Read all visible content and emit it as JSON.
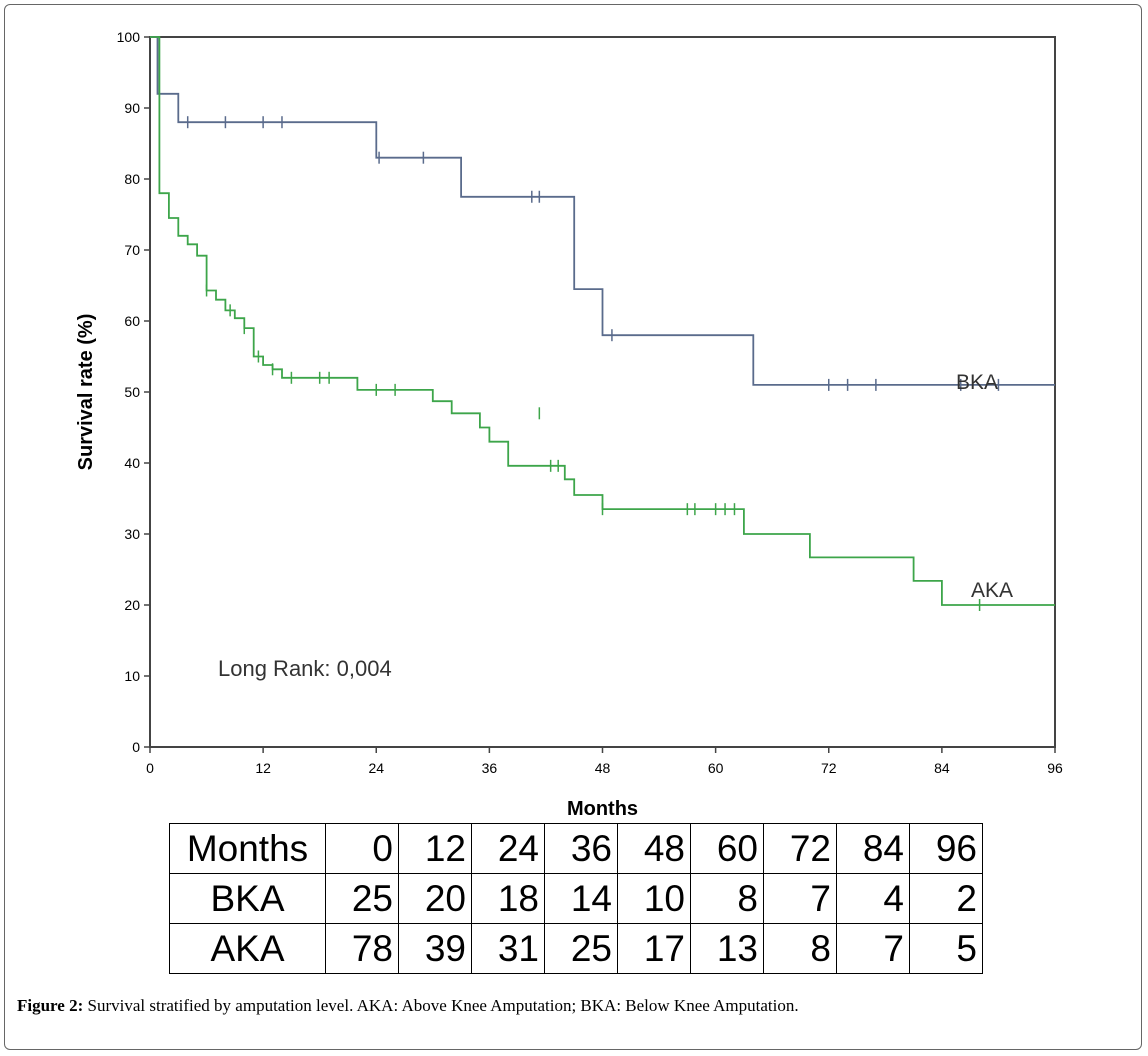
{
  "chart_data": {
    "type": "line",
    "subtype": "kaplan-meier step",
    "xlabel": "Months",
    "ylabel": "Survival rate (%)",
    "xlim": [
      0,
      96
    ],
    "ylim": [
      0,
      100
    ],
    "xticks": [
      0,
      12,
      24,
      36,
      48,
      60,
      72,
      84,
      96
    ],
    "yticks": [
      0,
      10,
      20,
      30,
      40,
      50,
      60,
      70,
      80,
      90,
      100
    ],
    "grid": false,
    "annotation": "Long Rank: 0,004",
    "series": [
      {
        "name": "BKA",
        "color": "#5a6b8c",
        "steps": [
          [
            0,
            100
          ],
          [
            0.8,
            100
          ],
          [
            0.8,
            92
          ],
          [
            3,
            92
          ],
          [
            3,
            88
          ],
          [
            24,
            88
          ],
          [
            24,
            83
          ],
          [
            33,
            83
          ],
          [
            33,
            77.5
          ],
          [
            45,
            77.5
          ],
          [
            45,
            64.5
          ],
          [
            48,
            64.5
          ],
          [
            48,
            58
          ],
          [
            64,
            58
          ],
          [
            64,
            51
          ],
          [
            96,
            51
          ]
        ],
        "censor_marks": [
          [
            4,
            88
          ],
          [
            8,
            88
          ],
          [
            12,
            88
          ],
          [
            14,
            88
          ],
          [
            24.3,
            83
          ],
          [
            29,
            83
          ],
          [
            40.5,
            77.5
          ],
          [
            41.3,
            77.5
          ],
          [
            49,
            58
          ],
          [
            72,
            51
          ],
          [
            74,
            51
          ],
          [
            77,
            51
          ],
          [
            86,
            51
          ],
          [
            90,
            51
          ]
        ]
      },
      {
        "name": "AKA",
        "color": "#3da54a",
        "steps": [
          [
            0,
            100
          ],
          [
            1,
            100
          ],
          [
            1,
            78
          ],
          [
            2,
            78
          ],
          [
            2,
            74.5
          ],
          [
            3,
            74.5
          ],
          [
            3,
            72
          ],
          [
            4,
            72
          ],
          [
            4,
            70.8
          ],
          [
            5,
            70.8
          ],
          [
            5,
            69.2
          ],
          [
            6,
            69.2
          ],
          [
            6,
            64.3
          ],
          [
            7,
            64.3
          ],
          [
            7,
            63
          ],
          [
            8,
            63
          ],
          [
            8,
            61.5
          ],
          [
            9,
            61.5
          ],
          [
            9,
            60.4
          ],
          [
            10,
            60.4
          ],
          [
            10,
            59
          ],
          [
            11,
            59
          ],
          [
            11,
            55
          ],
          [
            12,
            55
          ],
          [
            12,
            53.8
          ],
          [
            13,
            53.8
          ],
          [
            13,
            53.2
          ],
          [
            14,
            53.2
          ],
          [
            14,
            52
          ],
          [
            22,
            52
          ],
          [
            22,
            50.3
          ],
          [
            30,
            50.3
          ],
          [
            30,
            48.7
          ],
          [
            32,
            48.7
          ],
          [
            32,
            47
          ],
          [
            35,
            47
          ],
          [
            35,
            45
          ],
          [
            36,
            45
          ],
          [
            36,
            43
          ],
          [
            38,
            43
          ],
          [
            38,
            39.6
          ],
          [
            44,
            39.6
          ],
          [
            44,
            37.7
          ],
          [
            45,
            37.7
          ],
          [
            45,
            35.5
          ],
          [
            48,
            35.5
          ],
          [
            48,
            33.5
          ],
          [
            63,
            33.5
          ],
          [
            63,
            30
          ],
          [
            70,
            30
          ],
          [
            70,
            26.7
          ],
          [
            81,
            26.7
          ],
          [
            81,
            23.4
          ],
          [
            84,
            23.4
          ],
          [
            84,
            20
          ],
          [
            96,
            20
          ]
        ],
        "censor_marks": [
          [
            6,
            64.3
          ],
          [
            8.5,
            61.5
          ],
          [
            10,
            59
          ],
          [
            11.5,
            55
          ],
          [
            13,
            53.2
          ],
          [
            15,
            52
          ],
          [
            18,
            52
          ],
          [
            19,
            52
          ],
          [
            24,
            50.3
          ],
          [
            26,
            50.3
          ],
          [
            41.3,
            47
          ],
          [
            42.5,
            39.6
          ],
          [
            43.3,
            39.6
          ],
          [
            48,
            33.5
          ],
          [
            57,
            33.5
          ],
          [
            57.8,
            33.5
          ],
          [
            60,
            33.5
          ],
          [
            61,
            33.5
          ],
          [
            62,
            33.5
          ],
          [
            88,
            20
          ]
        ]
      }
    ],
    "series_labels": [
      "BKA",
      "AKA"
    ]
  },
  "risk_table": {
    "header_label": "Months",
    "months": [
      "0",
      "12",
      "24",
      "36",
      "48",
      "60",
      "72",
      "84",
      "96"
    ],
    "rows": [
      {
        "label": "BKA",
        "values": [
          "25",
          "20",
          "18",
          "14",
          "10",
          "8",
          "7",
          "4",
          "2"
        ]
      },
      {
        "label": "AKA",
        "values": [
          "78",
          "39",
          "31",
          "25",
          "17",
          "13",
          "8",
          "7",
          "5"
        ]
      }
    ]
  },
  "caption": {
    "label": "Figure 2:",
    "text": " Survival stratified by amputation level. AKA: Above Knee Amputation; BKA: Below Knee Amputation."
  }
}
